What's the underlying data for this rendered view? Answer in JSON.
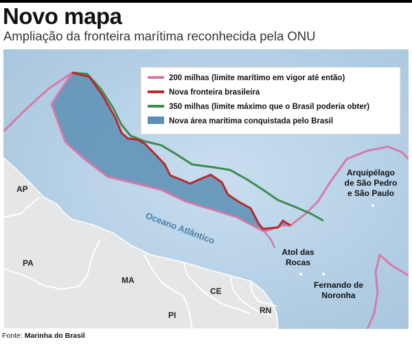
{
  "header": {
    "title": "Novo mapa",
    "subtitle": "Ampliação da fronteira marítima reconhecida pela ONU"
  },
  "legend": {
    "items": [
      {
        "label": "200 milhas (limite marítimo em vigor até então)",
        "color": "#d57aa8"
      },
      {
        "label": "Nova fronteira brasileira",
        "color": "#b8282d"
      },
      {
        "label": "350 milhas (limite máximo que o Brasil poderia obter)",
        "color": "#3e8a50"
      },
      {
        "label": "Nova área marítima conquistada pelo Brasil",
        "color": "#5c8fb4"
      }
    ]
  },
  "map": {
    "ocean_label": "Oceano Atlântico",
    "states": [
      "AP",
      "PA",
      "MA",
      "PI",
      "CE",
      "RN"
    ],
    "islands": {
      "archipelago": [
        "Arquipélago",
        "de São Pedro",
        "e São Paulo"
      ],
      "atol": [
        "Atol das",
        "Rocas"
      ],
      "fernando": [
        "Fernando de",
        "Noronha"
      ]
    },
    "colors": {
      "ocean": "#b8d3e6",
      "land": "#e4e6e8",
      "border": "#ffffff",
      "new_area": "#5c8fb4"
    }
  },
  "footer": {
    "source_label": "Fonte:",
    "source_name": "Marinha do Brasil"
  }
}
